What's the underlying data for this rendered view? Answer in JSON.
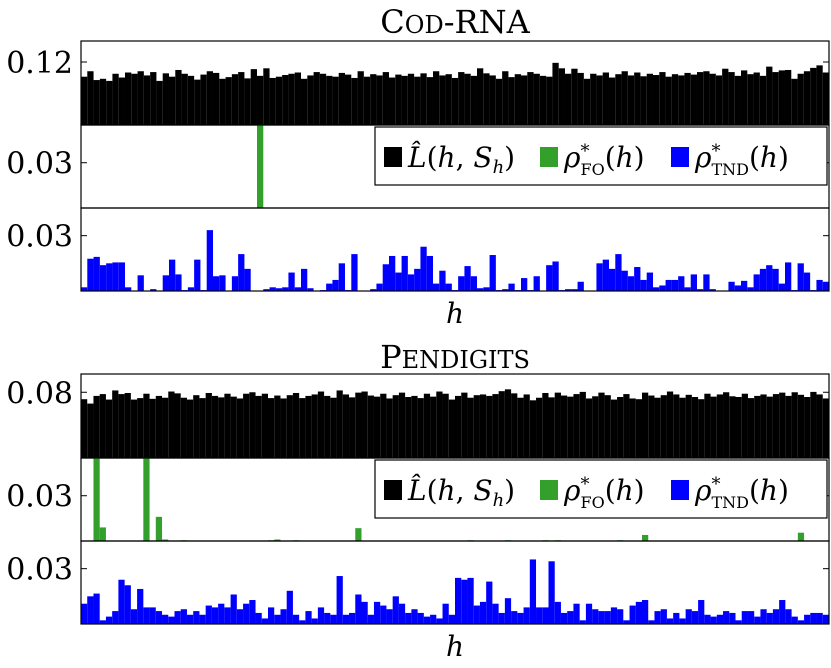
{
  "chart_data": [
    {
      "type": "bar",
      "title": "Cod-RNA",
      "xlabel": "h",
      "legend": {
        "placement": "inside-bottom-right",
        "entries": [
          {
            "key": "L",
            "label": "L̂(h, S_h)",
            "color": "#000000"
          },
          {
            "key": "FO",
            "label": "ρ*_FO(h)",
            "color": "#33a02c"
          },
          {
            "key": "TND",
            "label": "ρ*_TND(h)",
            "color": "#0000ff"
          }
        ]
      },
      "panels": [
        {
          "series": "L",
          "color": "#000000",
          "ytick_labels": [
            "0.12"
          ],
          "ylim": [
            0.105,
            0.125
          ],
          "yticks": [
            0.12
          ],
          "values": [
            0.1165,
            0.1178,
            0.1157,
            0.116,
            0.1155,
            0.1172,
            0.1163,
            0.1175,
            0.1172,
            0.1178,
            0.1168,
            0.1176,
            0.1155,
            0.1173,
            0.1165,
            0.1181,
            0.1172,
            0.1167,
            0.1158,
            0.117,
            0.1178,
            0.1174,
            0.116,
            0.1164,
            0.1171,
            0.1176,
            0.1161,
            0.1183,
            0.1167,
            0.1185,
            0.1162,
            0.1165,
            0.1169,
            0.1172,
            0.1175,
            0.116,
            0.1168,
            0.1176,
            0.1172,
            0.1167,
            0.1165,
            0.1174,
            0.117,
            0.1162,
            0.1178,
            0.1165,
            0.1171,
            0.1168,
            0.1176,
            0.1163,
            0.117,
            0.1167,
            0.1172,
            0.1165,
            0.1173,
            0.1164,
            0.1178,
            0.1168,
            0.1171,
            0.1162,
            0.1176,
            0.1172,
            0.1167,
            0.1185,
            0.1173,
            0.1168,
            0.116,
            0.1178,
            0.1164,
            0.1171,
            0.1168,
            0.1176,
            0.1172,
            0.1167,
            0.1165,
            0.1198,
            0.1185,
            0.1172,
            0.1184,
            0.1174,
            0.116,
            0.1172,
            0.1168,
            0.1175,
            0.1163,
            0.1171,
            0.1178,
            0.1168,
            0.1175,
            0.1166,
            0.1172,
            0.1169,
            0.1176,
            0.1165,
            0.1171,
            0.1168,
            0.1174,
            0.117,
            0.1176,
            0.1178,
            0.1172,
            0.1168,
            0.1184,
            0.1176,
            0.1167,
            0.118,
            0.1171,
            0.1175,
            0.1167,
            0.1189,
            0.1176,
            0.118,
            0.1181,
            0.116,
            0.1172,
            0.1178,
            0.1186,
            0.1192,
            0.1175
          ]
        },
        {
          "series": "FO",
          "color": "#33a02c",
          "ytick_labels": [
            "0.03"
          ],
          "ylim": [
            0,
            0.055
          ],
          "yticks": [
            0.03
          ],
          "values": [
            0,
            0,
            0,
            0,
            0,
            0,
            0,
            0,
            0,
            0,
            0,
            0,
            0,
            0,
            0,
            0,
            0,
            0,
            0,
            0,
            0,
            0,
            0,
            0,
            0,
            0,
            0,
            0,
            0.055,
            0,
            0,
            0,
            0,
            0,
            0,
            0,
            0,
            0,
            0,
            0,
            0,
            0,
            0,
            0,
            0,
            0,
            0,
            0,
            0,
            0,
            0,
            0,
            0,
            0,
            0,
            0,
            0,
            0,
            0,
            0,
            0,
            0,
            0,
            0,
            0,
            0,
            0,
            0,
            0,
            0,
            0,
            0,
            0,
            0,
            0,
            0,
            0,
            0,
            0,
            0,
            0,
            0,
            0,
            0,
            0,
            0,
            0,
            0,
            0,
            0,
            0,
            0,
            0,
            0,
            0,
            0,
            0,
            0,
            0,
            0,
            0,
            0,
            0,
            0,
            0,
            0,
            0,
            0,
            0,
            0,
            0,
            0,
            0,
            0,
            0,
            0,
            0,
            0,
            0
          ]
        },
        {
          "series": "TND",
          "color": "#0000ff",
          "ytick_labels": [
            "0.03"
          ],
          "ylim": [
            0,
            0.045
          ],
          "yticks": [
            0.03
          ],
          "values": [
            0.002,
            0.0175,
            0.0185,
            0.014,
            0.015,
            0.0155,
            0.0155,
            0.002,
            0,
            0.0085,
            0,
            0.001,
            0,
            0.0085,
            0.017,
            0.009,
            0.0005,
            0.002,
            0.017,
            0.0005,
            0.033,
            0.008,
            0.0085,
            0,
            0.008,
            0.02,
            0.012,
            0,
            0,
            0.001,
            0.002,
            0.0015,
            0.002,
            0.01,
            0.002,
            0.012,
            0.0015,
            0,
            0.0005,
            0.004,
            0.006,
            0.015,
            0.0005,
            0.02,
            0,
            0,
            0.001,
            0.004,
            0.0145,
            0.019,
            0.01,
            0.019,
            0.009,
            0.012,
            0.024,
            0.019,
            0.004,
            0.011,
            0.004,
            0.0005,
            0.008,
            0.0135,
            0.008,
            0.0015,
            0.002,
            0.0195,
            0.0005,
            0.001,
            0.004,
            0.0005,
            0.007,
            0.0005,
            0.008,
            0,
            0.014,
            0.016,
            0.0005,
            0.001,
            0.001,
            0.005,
            0,
            0,
            0.015,
            0.017,
            0.012,
            0.02,
            0.011,
            0.008,
            0.013,
            0.006,
            0.01,
            0.002,
            0.003,
            0.006,
            0.006,
            0.008,
            0.002,
            0.009,
            0.001,
            0.009,
            0.001,
            0,
            0,
            0.005,
            0.003,
            0.0055,
            0.002,
            0.009,
            0.012,
            0.014,
            0.012,
            0.004,
            0.0155,
            0.0005,
            0.015,
            0.01,
            0.0005,
            0.006,
            0.005
          ]
        }
      ]
    },
    {
      "type": "bar",
      "title": "Pendigits",
      "xlabel": "h",
      "legend": {
        "placement": "inside-bottom-right",
        "entries": [
          {
            "key": "L",
            "label": "L̂(h, S_h)",
            "color": "#000000"
          },
          {
            "key": "FO",
            "label": "ρ*_FO(h)",
            "color": "#33a02c"
          },
          {
            "key": "TND",
            "label": "ρ*_TND(h)",
            "color": "#0000ff"
          }
        ]
      },
      "panels": [
        {
          "series": "L",
          "color": "#000000",
          "ytick_labels": [
            "0.08"
          ],
          "ylim": [
            0.062,
            0.085
          ],
          "yticks": [
            0.08
          ],
          "values": [
            0.0781,
            0.0769,
            0.079,
            0.0795,
            0.078,
            0.0805,
            0.0795,
            0.0798,
            0.078,
            0.0784,
            0.0796,
            0.0782,
            0.079,
            0.0785,
            0.0802,
            0.0797,
            0.0785,
            0.078,
            0.0792,
            0.0784,
            0.0798,
            0.079,
            0.0786,
            0.0796,
            0.0788,
            0.0783,
            0.0796,
            0.08,
            0.079,
            0.0796,
            0.0784,
            0.0791,
            0.0783,
            0.0792,
            0.0798,
            0.0784,
            0.079,
            0.0794,
            0.0802,
            0.079,
            0.0785,
            0.0805,
            0.0794,
            0.0786,
            0.0799,
            0.0802,
            0.0791,
            0.0788,
            0.0796,
            0.0783,
            0.0792,
            0.0799,
            0.0787,
            0.079,
            0.0784,
            0.0796,
            0.0788,
            0.0802,
            0.0796,
            0.078,
            0.079,
            0.0799,
            0.0785,
            0.0792,
            0.0794,
            0.079,
            0.0795,
            0.0803,
            0.0808,
            0.0797,
            0.0785,
            0.0794,
            0.0778,
            0.0785,
            0.0798,
            0.0786,
            0.0799,
            0.0791,
            0.0788,
            0.0795,
            0.0801,
            0.0783,
            0.0789,
            0.0799,
            0.0792,
            0.078,
            0.0787,
            0.0795,
            0.0783,
            0.0781,
            0.0799,
            0.0791,
            0.0785,
            0.0792,
            0.0802,
            0.0794,
            0.0785,
            0.0793,
            0.0787,
            0.0781,
            0.0796,
            0.0788,
            0.0794,
            0.08,
            0.0789,
            0.0787,
            0.0796,
            0.0784,
            0.079,
            0.0794,
            0.0788,
            0.0795,
            0.0799,
            0.079,
            0.08,
            0.0793,
            0.0787,
            0.0801,
            0.0794,
            0.0783
          ]
        },
        {
          "series": "FO",
          "color": "#33a02c",
          "ytick_labels": [
            "0.03"
          ],
          "ylim": [
            0,
            0.055
          ],
          "yticks": [
            0.03
          ],
          "values": [
            0,
            0,
            0.055,
            0.009,
            0,
            0,
            0,
            0,
            0,
            0,
            0.055,
            0,
            0.016,
            0.001,
            0,
            0,
            0.0005,
            0,
            0,
            0,
            0,
            0,
            0,
            0,
            0,
            0,
            0,
            0,
            0,
            0,
            0.0005,
            0.001,
            0,
            0,
            0.0005,
            0,
            0,
            0,
            0,
            0,
            0,
            0,
            0,
            0,
            0.0085,
            0,
            0,
            0,
            0,
            0,
            0,
            0,
            0,
            0,
            0,
            0,
            0,
            0,
            0,
            0,
            0,
            0,
            0.0005,
            0,
            0,
            0,
            0,
            0,
            0.0005,
            0,
            0,
            0,
            0,
            0,
            0.0005,
            0,
            0.0005,
            0,
            0,
            0,
            0,
            0,
            0,
            0,
            0,
            0,
            0.0005,
            0,
            0,
            0,
            0.004,
            0,
            0,
            0,
            0,
            0,
            0,
            0,
            0,
            0,
            0,
            0,
            0,
            0,
            0,
            0,
            0,
            0,
            0,
            0,
            0,
            0,
            0,
            0,
            0,
            0.0055,
            0,
            0,
            0,
            0
          ]
        },
        {
          "series": "TND",
          "color": "#0000ff",
          "ytick_labels": [
            "0.03"
          ],
          "ylim": [
            0,
            0.045
          ],
          "yticks": [
            0.03
          ],
          "values": [
            0.011,
            0.015,
            0.0165,
            0.002,
            0.004,
            0.007,
            0.024,
            0.021,
            0.008,
            0.019,
            0.009,
            0.009,
            0.007,
            0.005,
            0.004,
            0.007,
            0.008,
            0.005,
            0.007,
            0.005,
            0.01,
            0.009,
            0.011,
            0.009,
            0.016,
            0.008,
            0.011,
            0.013,
            0.006,
            0.003,
            0.009,
            0.005,
            0.008,
            0.018,
            0.005,
            0.002,
            0.007,
            0.003,
            0.009,
            0.006,
            0.005,
            0.026,
            0.005,
            0.006,
            0.016,
            0.012,
            0.005,
            0.012,
            0.01,
            0.008,
            0.015,
            0.011,
            0.006,
            0.008,
            0.006,
            0.004,
            0.005,
            0.003,
            0.011,
            0.005,
            0.025,
            0.024,
            0.025,
            0.01,
            0.012,
            0.023,
            0.011,
            0.006,
            0.014,
            0.007,
            0.006,
            0.009,
            0.035,
            0.009,
            0.009,
            0.034,
            0.012,
            0.006,
            0.007,
            0.011,
            0.002,
            0.011,
            0.008,
            0.007,
            0.007,
            0.009,
            0.008,
            0.002,
            0.01,
            0.012,
            0.013,
            0.002,
            0.007,
            0.008,
            0.003,
            0.006,
            0.003,
            0.008,
            0.007,
            0.013,
            0.005,
            0.004,
            0.005,
            0.007,
            0.006,
            0.002,
            0.007,
            0.007,
            0.004,
            0.008,
            0.006,
            0.008,
            0.013,
            0.008,
            0.004,
            0.002,
            0.005,
            0.006,
            0.006,
            0.005
          ]
        }
      ]
    }
  ]
}
